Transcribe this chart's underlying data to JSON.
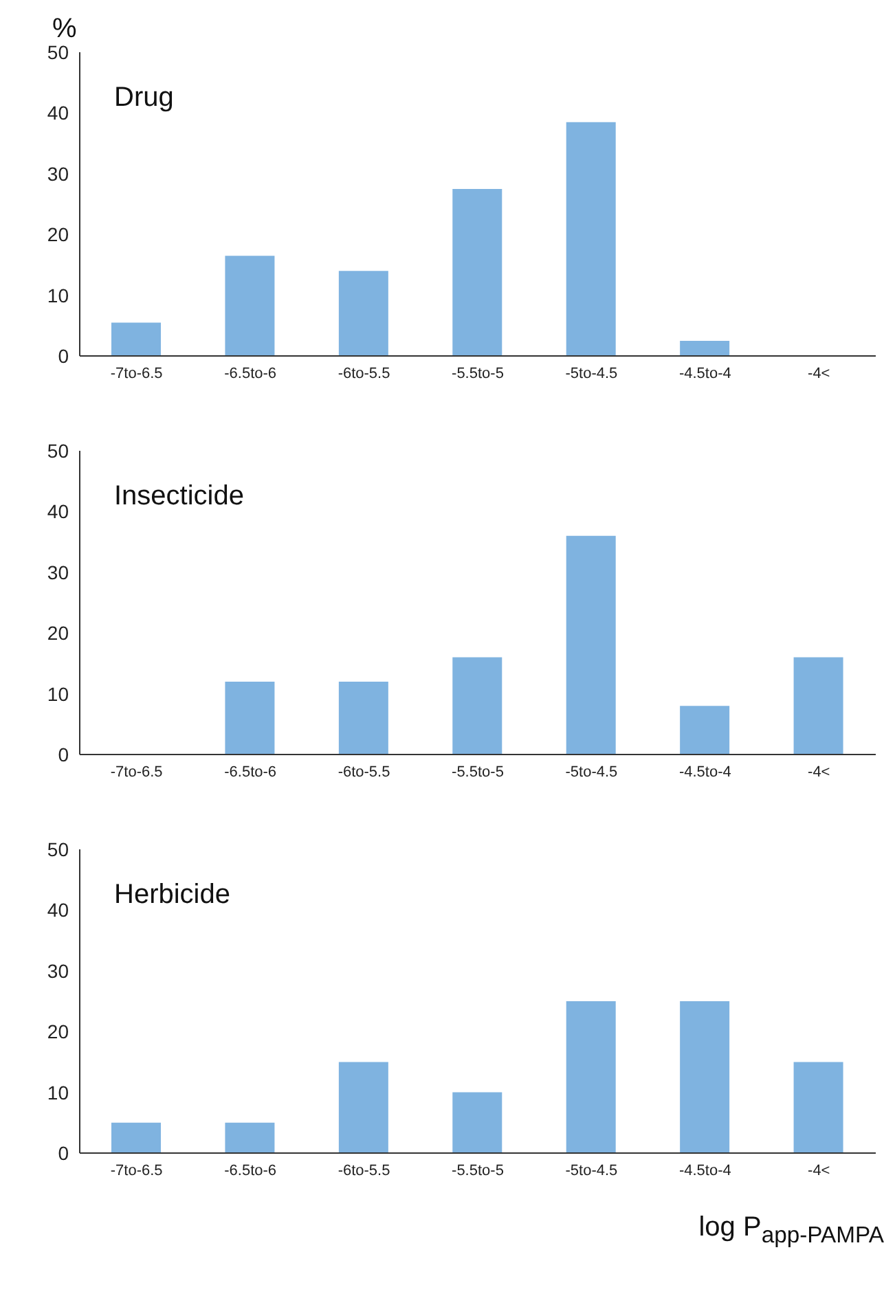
{
  "chart_data": [
    {
      "type": "bar",
      "title": "Drug",
      "ylabel": "%",
      "categories": [
        "-7to-6.5",
        "-6.5to-6",
        "-6to-5.5",
        "-5.5to-5",
        "-5to-4.5",
        "-4.5to-4",
        "-4<"
      ],
      "values": [
        5.5,
        16.5,
        14,
        27.5,
        38.5,
        2.5,
        0
      ],
      "color": "#7fb3e0",
      "ylim": [
        0,
        50
      ],
      "yticks": [
        0,
        10,
        20,
        30,
        40,
        50
      ],
      "grid": false,
      "legend": false
    },
    {
      "type": "bar",
      "title": "Insecticide",
      "categories": [
        "-7to-6.5",
        "-6.5to-6",
        "-6to-5.5",
        "-5.5to-5",
        "-5to-4.5",
        "-4.5to-4",
        "-4<"
      ],
      "values": [
        0,
        12,
        12,
        16,
        36,
        8,
        16
      ],
      "color": "#7fb3e0",
      "ylim": [
        0,
        50
      ],
      "yticks": [
        0,
        10,
        20,
        30,
        40,
        50
      ],
      "grid": false,
      "legend": false
    },
    {
      "type": "bar",
      "title": "Herbicide",
      "xlabel": "log P$_{app-PAMPA}$",
      "categories": [
        "-7to-6.5",
        "-6.5to-6",
        "-6to-5.5",
        "-5.5to-5",
        "-5to-4.5",
        "-4.5to-4",
        "-4<"
      ],
      "values": [
        5,
        5,
        15,
        10,
        25,
        25,
        15
      ],
      "color": "#7fb3e0",
      "ylim": [
        0,
        50
      ],
      "yticks": [
        0,
        10,
        20,
        30,
        40,
        50
      ],
      "grid": false,
      "legend": false
    }
  ]
}
